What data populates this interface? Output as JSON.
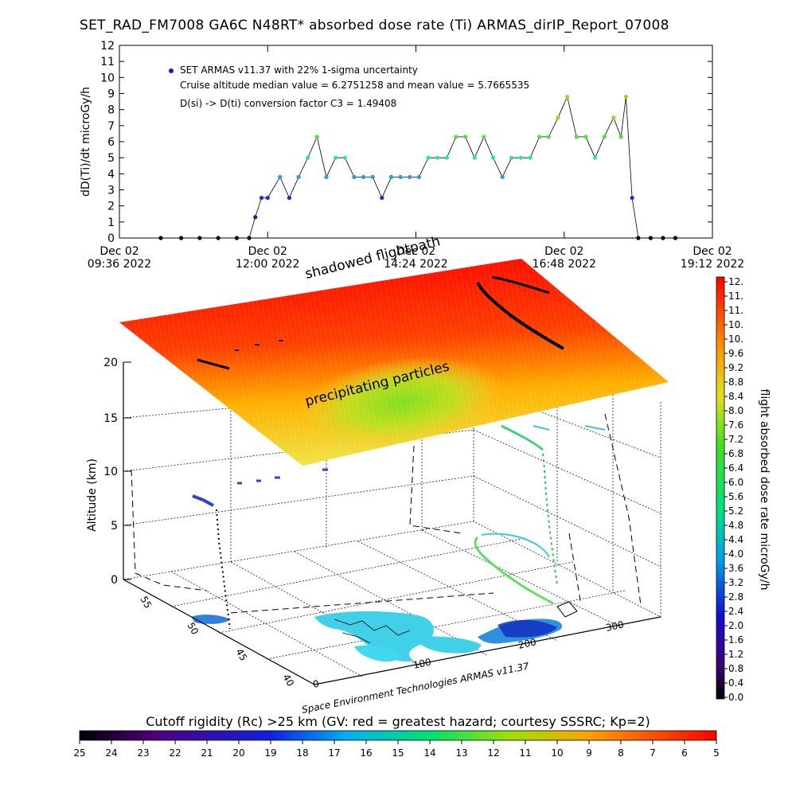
{
  "title": "SET_RAD_FM7008  GA6C N48RT* absorbed dose rate (Ti) ARMAS_dirIP_Report_07008",
  "chart_data": [
    {
      "type": "scatter",
      "ylabel": "dD(Ti)/dt microGy/h",
      "ylim": [
        0,
        12
      ],
      "yticks": [
        "0",
        "1",
        "2",
        "3",
        "4",
        "5",
        "6",
        "7",
        "8",
        "9",
        "10",
        "11",
        "12"
      ],
      "xticks": [
        {
          "line1": "Dec 02",
          "line2": "09:36 2022"
        },
        {
          "line1": "Dec 02",
          "line2": "12:00 2022"
        },
        {
          "line1": "Dec 02",
          "line2": "14:24 2022"
        },
        {
          "line1": "Dec 02",
          "line2": "16:48 2022"
        },
        {
          "line1": "Dec 02",
          "line2": "19:12 2022"
        }
      ],
      "legend": [
        "SET ARMAS v11.37 with 22% 1-sigma uncertainty",
        "Cruise altitude median value = 6.2751258 and mean value = 5.7665535",
        "D(si) -> D(ti) conversion factor C3 = 1.49408"
      ],
      "series": [
        {
          "hours": [
            10.27,
            10.6,
            10.9,
            11.2,
            11.5,
            11.7,
            11.8,
            11.9,
            12.0,
            12.2,
            12.35,
            12.5,
            12.65,
            12.8,
            12.95,
            13.1,
            13.25,
            13.4,
            13.55,
            13.7,
            13.85,
            14.0,
            14.15,
            14.3,
            14.45,
            14.6,
            14.75,
            14.9,
            15.05,
            15.2,
            15.35,
            15.5,
            15.65,
            15.8,
            15.95,
            16.1,
            16.25,
            16.4,
            16.55,
            16.7,
            16.85,
            17.0,
            17.15,
            17.3,
            17.45,
            17.6,
            17.72,
            17.8,
            17.9,
            18.0,
            18.2,
            18.4,
            18.6
          ],
          "values": [
            0,
            0,
            0,
            0,
            0,
            0,
            1.3,
            2.5,
            2.5,
            3.8,
            2.5,
            3.8,
            5.0,
            6.3,
            3.8,
            5.0,
            5.0,
            3.8,
            3.8,
            3.8,
            2.5,
            3.8,
            3.8,
            3.8,
            3.8,
            5.0,
            5.0,
            5.0,
            6.3,
            6.3,
            5.0,
            6.3,
            5.0,
            3.8,
            5.0,
            5.0,
            5.0,
            6.3,
            6.3,
            7.5,
            8.8,
            6.3,
            6.3,
            5.0,
            6.3,
            7.5,
            6.3,
            8.8,
            2.5,
            0,
            0,
            0,
            0
          ]
        }
      ]
    },
    {
      "type": "3d-surface",
      "annotations": [
        "shadowed flightpath",
        "precipitating particles"
      ],
      "zlabel": "Altitude (km)",
      "zticks": [
        "0",
        "5",
        "10",
        "15",
        "20"
      ],
      "lat_ticks": [
        "40",
        "45",
        "50",
        "55"
      ],
      "lon_ticks": [
        "0",
        "100",
        "200",
        "300"
      ],
      "credit": "Space Environment Technologies ARMAS v11.37"
    },
    {
      "type": "colorbar",
      "label": "flight absorbed dose rate microGy/h",
      "ticks": [
        "12.",
        "11.",
        "11.",
        "10.",
        "10.",
        "9.6",
        "9.2",
        "8.8",
        "8.4",
        "8.0",
        "7.6",
        "7.2",
        "6.8",
        "6.4",
        "6.0",
        "5.6",
        "5.2",
        "4.8",
        "4.4",
        "4.0",
        "3.6",
        "3.2",
        "2.8",
        "2.4",
        "2.0",
        "1.6",
        "1.2",
        "0.8",
        "0.4",
        "0.0"
      ]
    },
    {
      "type": "colorbar",
      "label": "Cutoff rigidity (Rc) >25 km (GV: red = greatest hazard; courtesy SSSRC; Kp=2)",
      "ticks": [
        "25",
        "24",
        "23",
        "22",
        "21",
        "20",
        "19",
        "18",
        "17",
        "16",
        "15",
        "14",
        "13",
        "12",
        "11",
        "10",
        "9",
        "8",
        "7",
        "6",
        "5"
      ]
    }
  ]
}
